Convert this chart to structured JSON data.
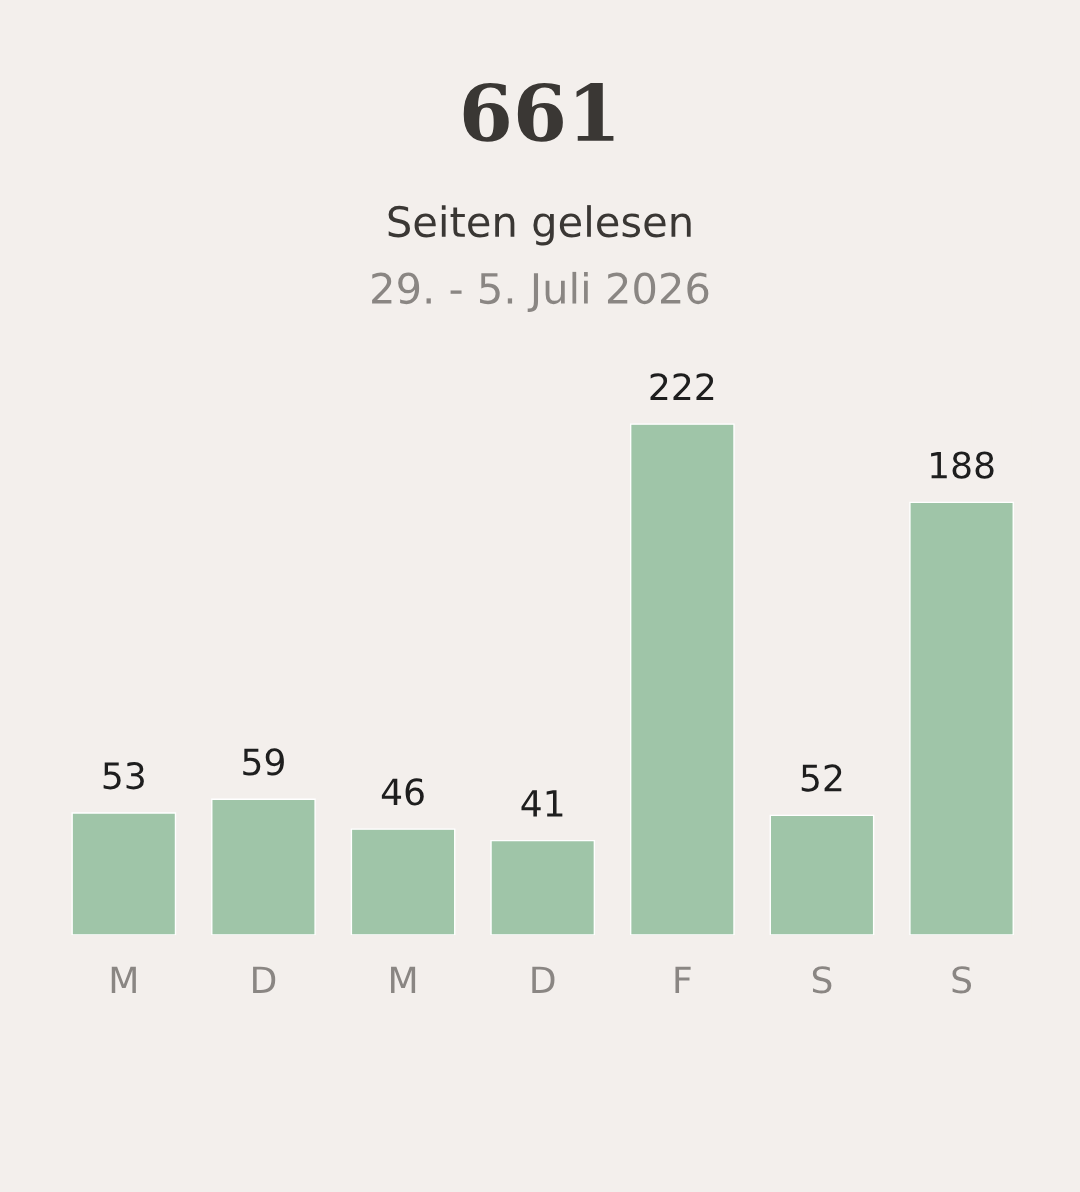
{
  "chart_data": {
    "type": "bar",
    "title": "661",
    "subtitle": "Seiten gelesen",
    "annotations": [
      "29. - 5. Juli 2026"
    ],
    "categories": [
      "M",
      "D",
      "M",
      "D",
      "F",
      "S",
      "S"
    ],
    "values": [
      53,
      59,
      46,
      41,
      222,
      52,
      188
    ],
    "color": "#9fc5a8",
    "data_labels": true,
    "grid": false,
    "legend": false
  }
}
